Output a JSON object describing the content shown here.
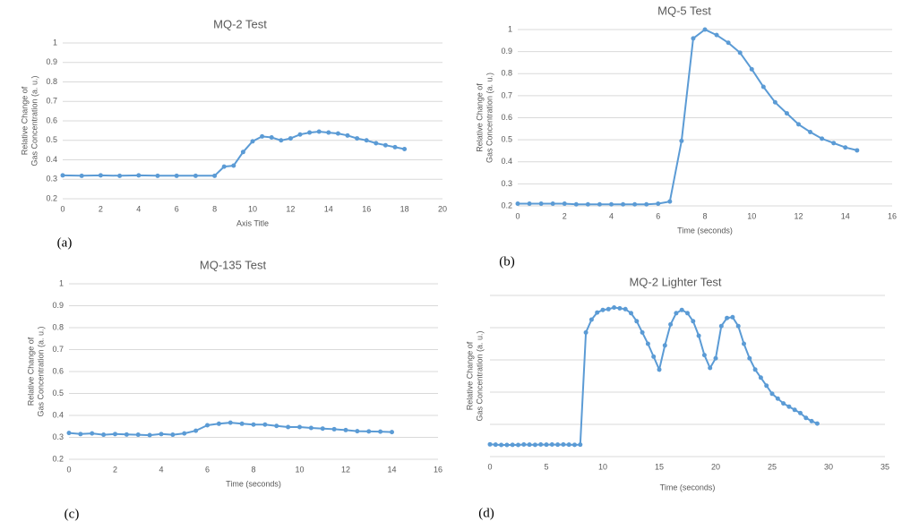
{
  "chart_data": [
    {
      "type": "line",
      "title": "MQ-2 Test",
      "xlabel": "Axis Title",
      "ylabel": [
        "Relative Change of",
        "Gas Concentration (a. u.)"
      ],
      "panel_label": "(a)",
      "x": [
        0,
        1,
        2,
        3,
        4,
        5,
        6,
        7,
        8,
        8.5,
        9,
        9.5,
        10,
        10.5,
        11,
        11.5,
        12,
        12.5,
        13,
        13.5,
        14,
        14.5,
        15,
        15.5,
        16,
        16.5,
        17,
        17.5,
        18
      ],
      "values": [
        0.32,
        0.318,
        0.32,
        0.318,
        0.32,
        0.318,
        0.318,
        0.318,
        0.318,
        0.365,
        0.37,
        0.44,
        0.495,
        0.52,
        0.515,
        0.5,
        0.51,
        0.53,
        0.54,
        0.545,
        0.54,
        0.535,
        0.525,
        0.51,
        0.5,
        0.485,
        0.475,
        0.465,
        0.455
      ],
      "color": "#5b9bd5",
      "xlim": [
        0,
        20
      ],
      "xticks": [
        0,
        2,
        4,
        6,
        8,
        10,
        12,
        14,
        16,
        18,
        20
      ],
      "ylim": [
        0.2,
        1
      ],
      "yticks": [
        0.2,
        0.3,
        0.4,
        0.5,
        0.6,
        0.7,
        0.8,
        0.9,
        1
      ],
      "grid": true
    },
    {
      "type": "line",
      "title": "MQ-5 Test",
      "xlabel": "Time (seconds)",
      "ylabel": [
        "Relative Change of",
        "Gas Concentration (a. u.)"
      ],
      "panel_label": "(b)",
      "x": [
        0,
        0.5,
        1,
        1.5,
        2,
        2.5,
        3,
        3.5,
        4,
        4.5,
        5,
        5.5,
        6,
        6.5,
        7,
        7.5,
        8,
        8.5,
        9,
        9.5,
        10,
        10.5,
        11,
        11.5,
        12,
        12.5,
        13,
        13.5,
        14,
        14.5
      ],
      "values": [
        0.21,
        0.21,
        0.21,
        0.21,
        0.21,
        0.207,
        0.207,
        0.207,
        0.207,
        0.207,
        0.207,
        0.207,
        0.21,
        0.22,
        0.495,
        0.96,
        1.0,
        0.975,
        0.94,
        0.895,
        0.82,
        0.74,
        0.67,
        0.62,
        0.57,
        0.535,
        0.505,
        0.485,
        0.465,
        0.452
      ],
      "color": "#5b9bd5",
      "xlim": [
        0,
        16
      ],
      "xticks": [
        0,
        2,
        4,
        6,
        8,
        10,
        12,
        14,
        16
      ],
      "ylim": [
        0.2,
        1
      ],
      "yticks": [
        0.2,
        0.3,
        0.4,
        0.5,
        0.6,
        0.7,
        0.8,
        0.9,
        1
      ],
      "grid": true
    },
    {
      "type": "line",
      "title": "MQ-135 Test",
      "xlabel": "Time (seconds)",
      "ylabel": [
        "Relative Change of",
        "Gas Concentration (a. u.)"
      ],
      "panel_label": "(c)",
      "x": [
        0,
        0.5,
        1,
        1.5,
        2,
        2.5,
        3,
        3.5,
        4,
        4.5,
        5,
        5.5,
        6,
        6.5,
        7,
        7.5,
        8,
        8.5,
        9,
        9.5,
        10,
        10.5,
        11,
        11.5,
        12,
        12.5,
        13,
        13.5,
        14
      ],
      "values": [
        0.32,
        0.315,
        0.318,
        0.312,
        0.315,
        0.313,
        0.312,
        0.31,
        0.315,
        0.312,
        0.318,
        0.33,
        0.355,
        0.362,
        0.367,
        0.362,
        0.358,
        0.358,
        0.352,
        0.347,
        0.347,
        0.343,
        0.34,
        0.337,
        0.333,
        0.328,
        0.327,
        0.326,
        0.324
      ],
      "color": "#5b9bd5",
      "xlim": [
        0,
        16
      ],
      "xticks": [
        0,
        2,
        4,
        6,
        8,
        10,
        12,
        14,
        16
      ],
      "ylim": [
        0.2,
        1
      ],
      "yticks": [
        0.2,
        0.3,
        0.4,
        0.5,
        0.6,
        0.7,
        0.8,
        0.9,
        1
      ],
      "grid": true
    },
    {
      "type": "line",
      "title": "MQ-2 Lighter Test",
      "xlabel": "Time (seconds)",
      "ylabel": [
        "Relative Change of",
        "Gas Concentration (a. u.)"
      ],
      "panel_label": "(d)",
      "x": [
        0,
        0.5,
        1,
        1.5,
        2,
        2.5,
        3,
        3.5,
        4,
        4.5,
        5,
        5.5,
        6,
        6.5,
        7,
        7.5,
        8,
        8.5,
        9,
        9.5,
        10,
        10.5,
        11,
        11.5,
        12,
        12.5,
        13,
        13.5,
        14,
        14.5,
        15,
        15.5,
        16,
        16.5,
        17,
        17.5,
        18,
        18.5,
        19,
        19.5,
        20,
        20.5,
        21,
        21.5,
        22,
        22.5,
        23,
        23.5,
        24,
        24.5,
        25,
        25.5,
        26,
        26.5,
        27,
        27.5,
        28,
        28.5,
        29
      ],
      "values": [
        0.076,
        0.074,
        0.072,
        0.072,
        0.073,
        0.072,
        0.075,
        0.074,
        0.073,
        0.075,
        0.074,
        0.075,
        0.074,
        0.075,
        0.074,
        0.073,
        0.074,
        0.77,
        0.85,
        0.894,
        0.91,
        0.915,
        0.925,
        0.92,
        0.915,
        0.89,
        0.84,
        0.77,
        0.7,
        0.62,
        0.54,
        0.69,
        0.82,
        0.89,
        0.91,
        0.89,
        0.84,
        0.75,
        0.63,
        0.55,
        0.61,
        0.81,
        0.86,
        0.865,
        0.81,
        0.7,
        0.61,
        0.54,
        0.49,
        0.44,
        0.39,
        0.36,
        0.33,
        0.31,
        0.29,
        0.27,
        0.24,
        0.22,
        0.205
      ],
      "color": "#5b9bd5",
      "xlim": [
        0,
        35
      ],
      "xticks": [
        0,
        5,
        10,
        15,
        20,
        25,
        30,
        35
      ],
      "ylim": [
        0,
        1
      ],
      "yticks": [
        0,
        0.2,
        0.4,
        0.6,
        0.8,
        1
      ],
      "ytick_labels": false,
      "grid": true
    }
  ]
}
